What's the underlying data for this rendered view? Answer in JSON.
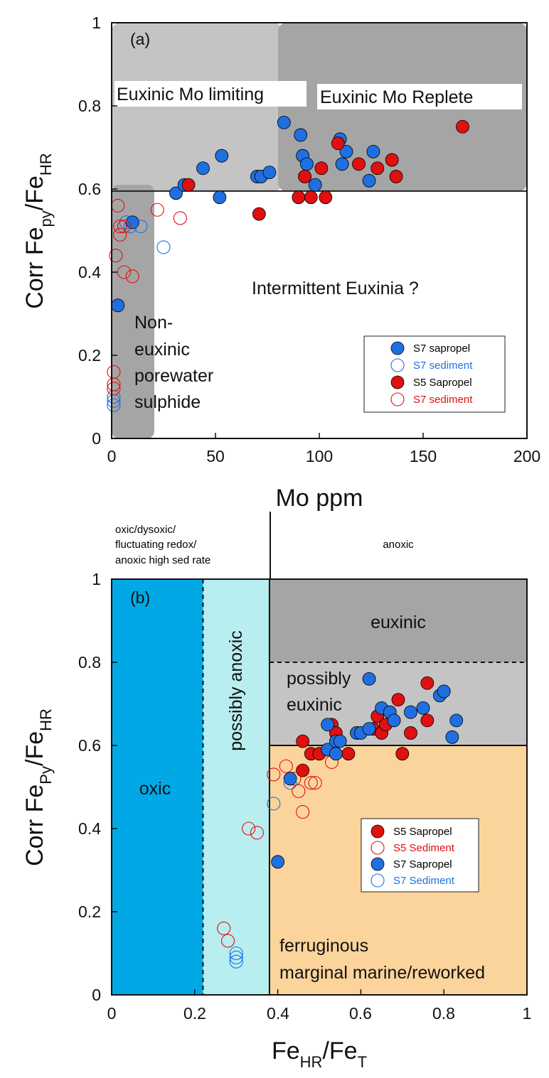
{
  "chart_data": [
    {
      "type": "scatter",
      "panel_label": "(a)",
      "xlabel": "Mo ppm",
      "ylabel": {
        "main": "Corr Fe",
        "sub1": "py",
        "mid": "/Fe",
        "sub2": "HR"
      },
      "xlim": [
        0,
        200
      ],
      "ylim": [
        0,
        1
      ],
      "xticks": [
        "0",
        "50",
        "100",
        "150",
        "200"
      ],
      "yticks": [
        "0",
        "0.2",
        "0.4",
        "0.6",
        "0.8",
        "1"
      ],
      "threshold_y": 0.595,
      "regions": {
        "euxinic_mo_limiting": "Euxinic Mo limiting",
        "euxinic_mo_replete": "Euxinic Mo Replete",
        "intermittent": "Intermittent Euxinia ?",
        "non_euxinic": [
          "Non-",
          "euxinic",
          "porewater",
          "sulphide"
        ]
      },
      "region_colors": {
        "limiting": "#c4c4c4",
        "replete": "#a5a5a5",
        "non_euxinic": "#a5a5a5"
      },
      "legend_position": "bottom-right",
      "series": [
        {
          "name": "S7 sapropel",
          "marker": "filled",
          "color": "#1f6fe0",
          "text_color": "#000000",
          "points": [
            [
              3,
              0.32
            ],
            [
              10,
              0.52
            ],
            [
              31,
              0.59
            ],
            [
              35,
              0.61
            ],
            [
              44,
              0.65
            ],
            [
              52,
              0.58
            ],
            [
              53,
              0.68
            ],
            [
              70,
              0.63
            ],
            [
              72,
              0.63
            ],
            [
              76,
              0.64
            ],
            [
              83,
              0.76
            ],
            [
              91,
              0.73
            ],
            [
              92,
              0.68
            ],
            [
              94,
              0.66
            ],
            [
              98,
              0.61
            ],
            [
              110,
              0.72
            ],
            [
              111,
              0.66
            ],
            [
              113,
              0.69
            ],
            [
              124,
              0.62
            ],
            [
              126,
              0.69
            ]
          ]
        },
        {
          "name": "S7 sediment",
          "marker": "open",
          "color": "#1f6fe0",
          "text_color": "#1f6fe0",
          "points": [
            [
              1,
              0.08
            ],
            [
              1,
              0.09
            ],
            [
              1,
              0.1
            ],
            [
              7,
              0.52
            ],
            [
              9,
              0.51
            ],
            [
              14,
              0.51
            ],
            [
              25,
              0.46
            ]
          ]
        },
        {
          "name": "S5 Sapropel",
          "marker": "filled",
          "color": "#e01010",
          "text_color": "#000000",
          "points": [
            [
              37,
              0.61
            ],
            [
              71,
              0.54
            ],
            [
              90,
              0.58
            ],
            [
              93,
              0.63
            ],
            [
              96,
              0.58
            ],
            [
              101,
              0.65
            ],
            [
              103,
              0.58
            ],
            [
              109,
              0.71
            ],
            [
              119,
              0.66
            ],
            [
              128,
              0.65
            ],
            [
              135,
              0.67
            ],
            [
              137,
              0.63
            ],
            [
              169,
              0.75
            ]
          ]
        },
        {
          "name": "S7 sediment",
          "marker": "open",
          "color": "#e01010",
          "text_color": "#e01010",
          "points": [
            [
              1,
              0.12
            ],
            [
              1,
              0.13
            ],
            [
              1,
              0.16
            ],
            [
              2,
              0.44
            ],
            [
              3,
              0.56
            ],
            [
              4,
              0.49
            ],
            [
              4,
              0.51
            ],
            [
              6,
              0.51
            ],
            [
              6,
              0.4
            ],
            [
              10,
              0.39
            ],
            [
              22,
              0.55
            ],
            [
              33,
              0.53
            ]
          ]
        }
      ]
    },
    {
      "type": "scatter",
      "panel_label": "(b)",
      "xlabel": {
        "main": "Fe",
        "sub1": "HR",
        "mid": "/Fe",
        "sub2": "T"
      },
      "ylabel": {
        "main": "Corr Fe",
        "sub1": "Py",
        "mid": "/Fe",
        "sub2": "HR"
      },
      "xlim": [
        0,
        1
      ],
      "ylim": [
        0,
        1
      ],
      "xticks": [
        "0",
        "0.2",
        "0.4",
        "0.6",
        "0.8",
        "1"
      ],
      "yticks": [
        "0",
        "0.2",
        "0.4",
        "0.6",
        "0.8",
        "1"
      ],
      "dashed_x": 0.22,
      "divider_x": 0.38,
      "threshold_y": 0.6,
      "dashed_y": 0.8,
      "top_labels": {
        "left": [
          "oxic/dysoxic/",
          "fluctuating redox/",
          "anoxic high sed rate"
        ],
        "right": "anoxic"
      },
      "regions": {
        "oxic": "oxic",
        "possibly_anoxic": "possibly anoxic",
        "euxinic": "euxinic",
        "possibly_euxinic": [
          "possibly",
          "euxinic"
        ],
        "ferruginous": [
          "ferruginous",
          "marginal marine/reworked"
        ]
      },
      "region_colors": {
        "oxic": "#00a9e6",
        "possibly_anoxic": "#b8eef0",
        "euxinic": "#a5a5a5",
        "possibly_euxinic": "#c4c4c4",
        "ferruginous": "#fbd49b"
      },
      "legend_position": "center-right",
      "series": [
        {
          "name": "S5 Sapropel",
          "marker": "filled",
          "color": "#e01010",
          "text_color": "#000000",
          "points": [
            [
              0.46,
              0.54
            ],
            [
              0.46,
              0.61
            ],
            [
              0.48,
              0.58
            ],
            [
              0.5,
              0.58
            ],
            [
              0.53,
              0.65
            ],
            [
              0.54,
              0.63
            ],
            [
              0.57,
              0.58
            ],
            [
              0.63,
              0.64
            ],
            [
              0.64,
              0.67
            ],
            [
              0.65,
              0.63
            ],
            [
              0.66,
              0.65
            ],
            [
              0.69,
              0.71
            ],
            [
              0.7,
              0.58
            ],
            [
              0.72,
              0.63
            ],
            [
              0.76,
              0.75
            ],
            [
              0.76,
              0.66
            ]
          ]
        },
        {
          "name": "S5 Sediment",
          "marker": "open",
          "color": "#e01010",
          "text_color": "#e01010",
          "points": [
            [
              0.27,
              0.16
            ],
            [
              0.28,
              0.13
            ],
            [
              0.33,
              0.4
            ],
            [
              0.35,
              0.39
            ],
            [
              0.39,
              0.53
            ],
            [
              0.42,
              0.55
            ],
            [
              0.44,
              0.52
            ],
            [
              0.45,
              0.49
            ],
            [
              0.46,
              0.44
            ],
            [
              0.48,
              0.51
            ],
            [
              0.49,
              0.51
            ],
            [
              0.53,
              0.56
            ]
          ]
        },
        {
          "name": "S7 Sapropel",
          "marker": "filled",
          "color": "#1f6fe0",
          "text_color": "#000000",
          "points": [
            [
              0.4,
              0.32
            ],
            [
              0.43,
              0.52
            ],
            [
              0.52,
              0.59
            ],
            [
              0.52,
              0.65
            ],
            [
              0.54,
              0.61
            ],
            [
              0.54,
              0.58
            ],
            [
              0.55,
              0.61
            ],
            [
              0.59,
              0.63
            ],
            [
              0.6,
              0.63
            ],
            [
              0.62,
              0.76
            ],
            [
              0.62,
              0.64
            ],
            [
              0.65,
              0.69
            ],
            [
              0.67,
              0.68
            ],
            [
              0.68,
              0.66
            ],
            [
              0.72,
              0.68
            ],
            [
              0.75,
              0.69
            ],
            [
              0.79,
              0.72
            ],
            [
              0.8,
              0.73
            ],
            [
              0.82,
              0.62
            ],
            [
              0.83,
              0.66
            ]
          ]
        },
        {
          "name": "S7 Sediment",
          "marker": "open",
          "color": "#1f6fe0",
          "text_color": "#1f6fe0",
          "points": [
            [
              0.3,
              0.08
            ],
            [
              0.3,
              0.09
            ],
            [
              0.3,
              0.1
            ],
            [
              0.39,
              0.46
            ],
            [
              0.43,
              0.51
            ]
          ]
        }
      ]
    }
  ]
}
